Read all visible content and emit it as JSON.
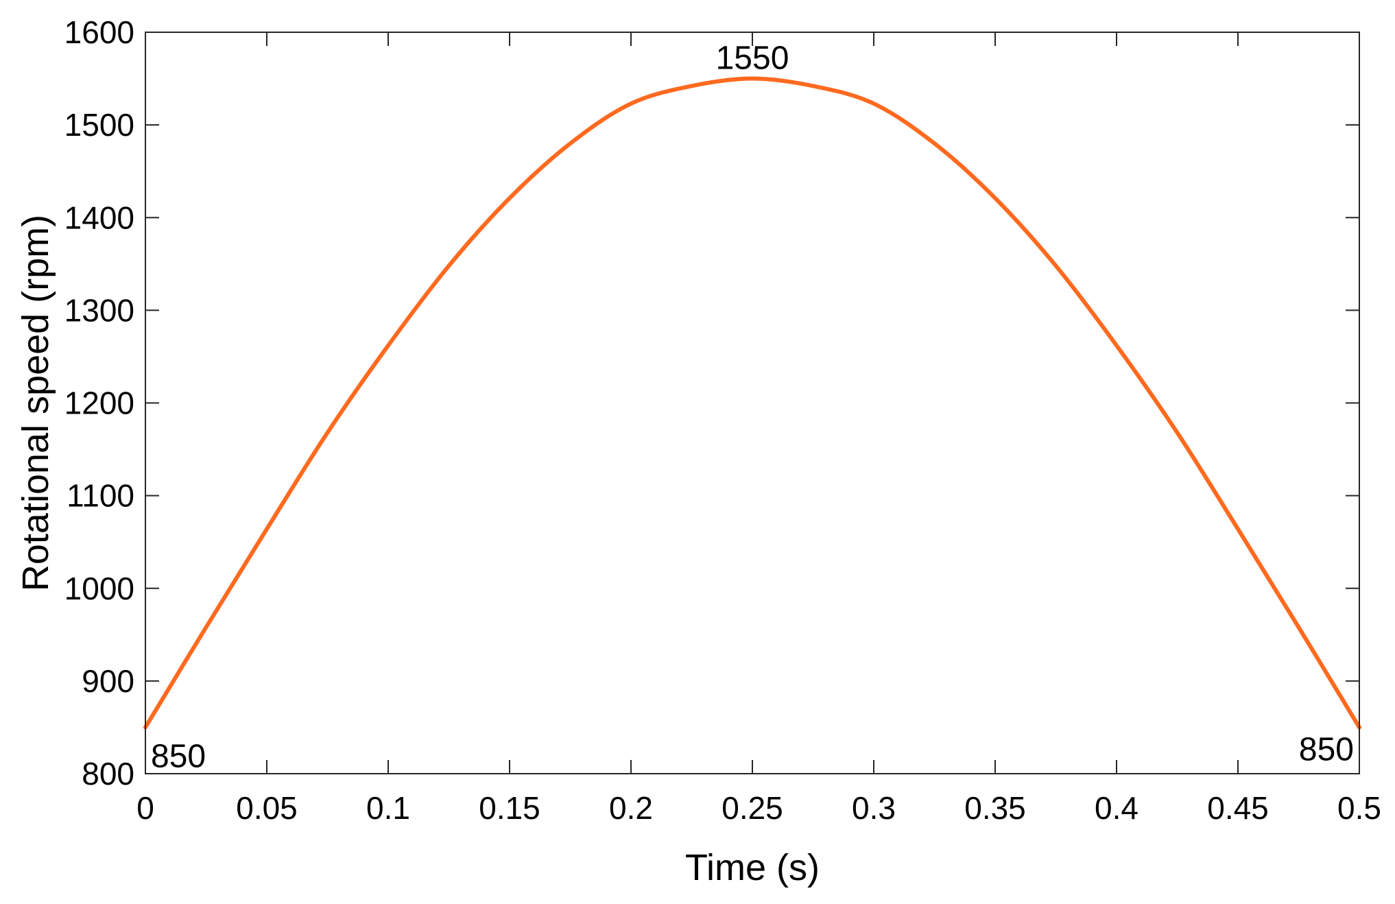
{
  "chart_data": {
    "type": "line",
    "xlabel": "Time (s)",
    "ylabel": "Rotational speed (rpm)",
    "xlim": [
      0,
      0.5
    ],
    "ylim": [
      800,
      1600
    ],
    "xticks": [
      0,
      0.05,
      0.1,
      0.15,
      0.2,
      0.25,
      0.3,
      0.35,
      0.4,
      0.45,
      0.5
    ],
    "xtick_labels": [
      "0",
      "0.05",
      "0.1",
      "0.15",
      "0.2",
      "0.25",
      "0.3",
      "0.35",
      "0.4",
      "0.45",
      "0.5"
    ],
    "yticks": [
      800,
      900,
      1000,
      1100,
      1200,
      1300,
      1400,
      1500,
      1600
    ],
    "ytick_labels": [
      "800",
      "900",
      "1000",
      "1100",
      "1200",
      "1300",
      "1400",
      "1500",
      "1600"
    ],
    "grid": false,
    "series": [
      {
        "color": "#ff6a1f",
        "x": [
          0,
          0.025,
          0.05,
          0.075,
          0.1,
          0.125,
          0.15,
          0.175,
          0.2,
          0.225,
          0.25,
          0.275,
          0.3,
          0.325,
          0.35,
          0.375,
          0.4,
          0.425,
          0.45,
          0.475,
          0.5
        ],
        "y": [
          850,
          958,
          1064,
          1168,
          1262,
          1348,
          1421,
          1480,
          1523,
          1542,
          1550,
          1542,
          1523,
          1480,
          1421,
          1348,
          1262,
          1168,
          1064,
          958,
          850
        ]
      }
    ],
    "annotations": [
      {
        "text": "850",
        "x": 0,
        "y": 850
      },
      {
        "text": "1550",
        "x": 0.25,
        "y": 1550
      },
      {
        "text": "850",
        "x": 0.5,
        "y": 850
      }
    ]
  }
}
